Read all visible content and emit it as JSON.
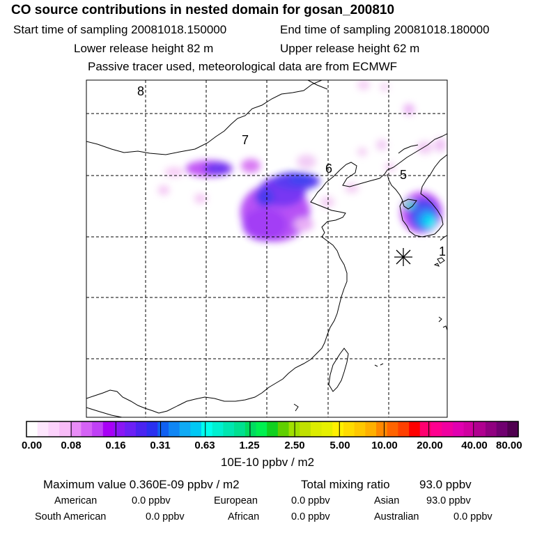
{
  "header": {
    "title": "CO  source contributions in nested domain for gosan_200810",
    "start_label": "Start time of sampling 20081018.150000",
    "end_label": "End time of sampling 20081018.180000",
    "lower_label": "Lower release height   82 m",
    "upper_label": "Upper release height   62 m",
    "tracer_note": "Passive tracer used, meteorological data are from ECMWF"
  },
  "map": {
    "markers": [
      "8",
      "7",
      "6",
      "5",
      "1"
    ],
    "receptor_icon": "star-receptor-icon"
  },
  "colorbar": {
    "tick_labels": [
      "0.00",
      "0.08",
      "0.16",
      "0.31",
      "0.63",
      "1.25",
      "2.50",
      "5.00",
      "10.00",
      "20.00",
      "40.00",
      "80.00"
    ],
    "unit": "10E-10 ppbv / m2",
    "colors": [
      "#ffffff",
      "#fde6fd",
      "#fbd2fb",
      "#f7bcf7",
      "#e88cf6",
      "#d562f6",
      "#c040f6",
      "#a800f6",
      "#8a16f5",
      "#6c20f5",
      "#4a24f0",
      "#2a30f0",
      "#1060f2",
      "#1086f4",
      "#10aaf4",
      "#00c8f4",
      "#00ffee",
      "#00f0d0",
      "#00e6b0",
      "#00e090",
      "#00dc60",
      "#00f050",
      "#10d020",
      "#60d000",
      "#a0e000",
      "#c0e000",
      "#dcec00",
      "#e6f000",
      "#fff000",
      "#ffdc00",
      "#ffc800",
      "#ffb000",
      "#ff8800",
      "#ff6400",
      "#ff4000",
      "#ff0000",
      "#ff0070",
      "#ff0090",
      "#f000a0",
      "#e000b0",
      "#d000a0",
      "#b00090",
      "#900080",
      "#700070",
      "#500050"
    ]
  },
  "summary": {
    "max_label": "Maximum value  0.360E-09 ppbv / m2",
    "total_label": "Total mixing ratio",
    "total_value": "93.0 ppbv",
    "american_label": "American",
    "american_value": "0.0 ppbv",
    "european_label": "European",
    "european_value": "0.0 ppbv",
    "asian_label": "Asian",
    "asian_value": "93.0 ppbv",
    "south_american_label": "South American",
    "south_american_value": "0.0 ppbv",
    "african_label": "African",
    "african_value": "0.0 ppbv",
    "australian_label": "Australian",
    "australian_value": "0.0 ppbv"
  },
  "chart_data": {
    "type": "heatmap",
    "title": "CO  source contributions in nested domain for gosan_200810",
    "colorbar_ticks": [
      0.0,
      0.08,
      0.16,
      0.31,
      0.63,
      1.25,
      2.5,
      5.0,
      10.0,
      20.0,
      40.0,
      80.0
    ],
    "colorbar_unit": "10E-10 ppbv / m2",
    "max_value": "0.360E-09 ppbv / m2",
    "receptor": "gosan",
    "source_regions_ppbv": {
      "American": 0.0,
      "European": 0.0,
      "Asian": 93.0,
      "South American": 0.0,
      "African": 0.0,
      "Australian": 0.0
    },
    "total_mixing_ratio_ppbv": 93.0,
    "legend": "bottom"
  }
}
